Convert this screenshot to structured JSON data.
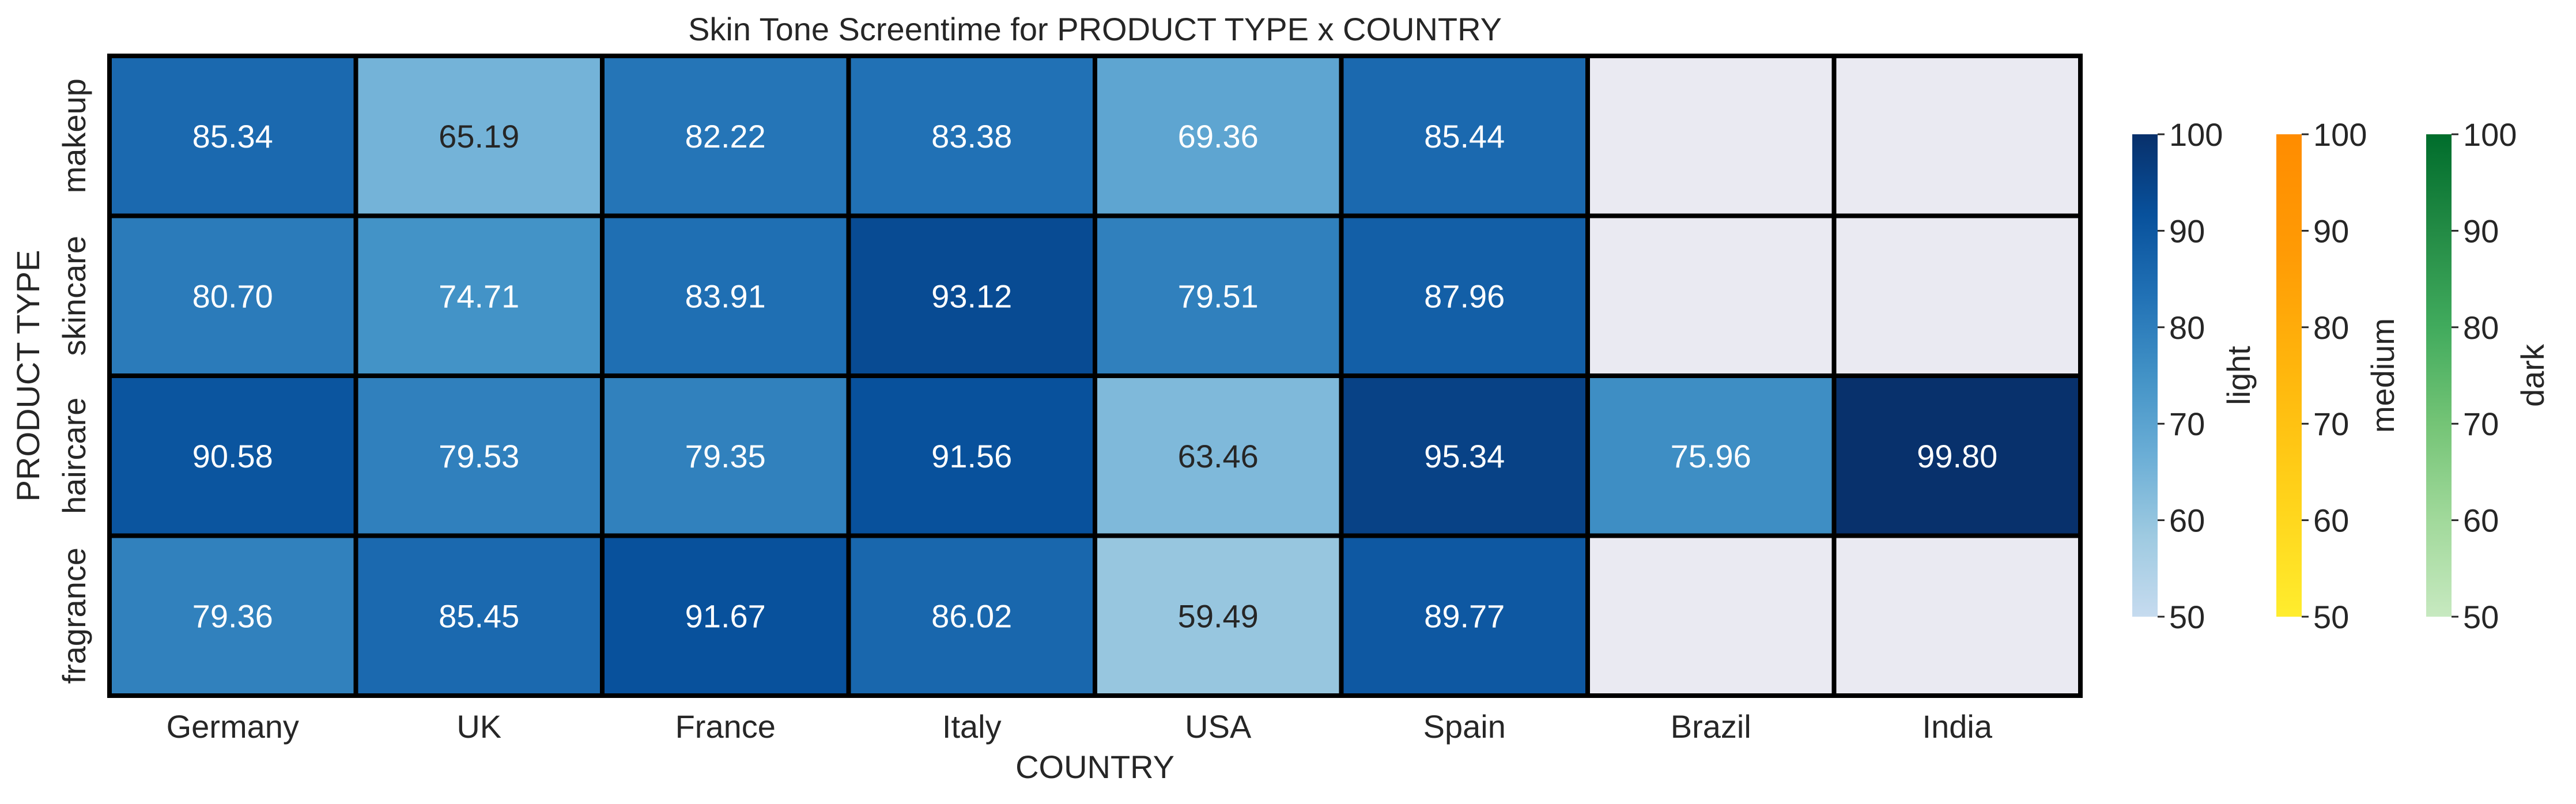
{
  "chart_data": {
    "type": "heatmap",
    "title": "Skin Tone Screentime for PRODUCT TYPE x COUNTRY",
    "xlabel": "COUNTRY",
    "ylabel": "PRODUCT TYPE",
    "x_categories": [
      "Germany",
      "UK",
      "France",
      "Italy",
      "USA",
      "Spain",
      "Brazil",
      "India"
    ],
    "y_categories": [
      "makeup",
      "skincare",
      "haircare",
      "fragrance"
    ],
    "values": [
      [
        85.34,
        65.19,
        82.22,
        83.38,
        69.36,
        85.44,
        null,
        null
      ],
      [
        80.7,
        74.71,
        83.91,
        93.12,
        79.51,
        87.96,
        null,
        null
      ],
      [
        90.58,
        79.53,
        79.35,
        91.56,
        63.46,
        95.34,
        75.96,
        99.8
      ],
      [
        79.36,
        85.45,
        91.67,
        86.02,
        59.49,
        89.77,
        null,
        null
      ]
    ],
    "value_labels": [
      [
        "85.34",
        "65.19",
        "82.22",
        "83.38",
        "69.36",
        "85.44",
        "",
        ""
      ],
      [
        "80.70",
        "74.71",
        "83.91",
        "93.12",
        "79.51",
        "87.96",
        "",
        ""
      ],
      [
        "90.58",
        "79.53",
        "79.35",
        "91.56",
        "63.46",
        "95.34",
        "75.96",
        "99.80"
      ],
      [
        "79.36",
        "85.45",
        "91.67",
        "86.02",
        "59.49",
        "89.77",
        "",
        ""
      ]
    ],
    "missing_color": "#eaeaf2",
    "cell_border_color": "#000000",
    "colorbars": [
      {
        "label": "light",
        "vmin": 50,
        "vmax": 100,
        "ticks": [
          "50",
          "60",
          "70",
          "80",
          "90",
          "100"
        ],
        "colors": [
          "#c6dbef",
          "#9ecae1",
          "#6baed6",
          "#4292c6",
          "#2171b5",
          "#08519c",
          "#08306b"
        ]
      },
      {
        "label": "medium",
        "vmin": 50,
        "vmax": 100,
        "ticks": [
          "50",
          "60",
          "70",
          "80",
          "90",
          "100"
        ],
        "colors": [
          "#ffed2e",
          "#ffd21a",
          "#ffb70d",
          "#ff9b05",
          "#ff8c00"
        ]
      },
      {
        "label": "dark",
        "vmin": 50,
        "vmax": 100,
        "ticks": [
          "50",
          "60",
          "70",
          "80",
          "90",
          "100"
        ],
        "colors": [
          "#c7e9c0",
          "#a1d99b",
          "#74c476",
          "#41ab5d",
          "#238b45",
          "#006d2c"
        ]
      }
    ],
    "applied_colormap": "light",
    "legend_position": "right"
  }
}
